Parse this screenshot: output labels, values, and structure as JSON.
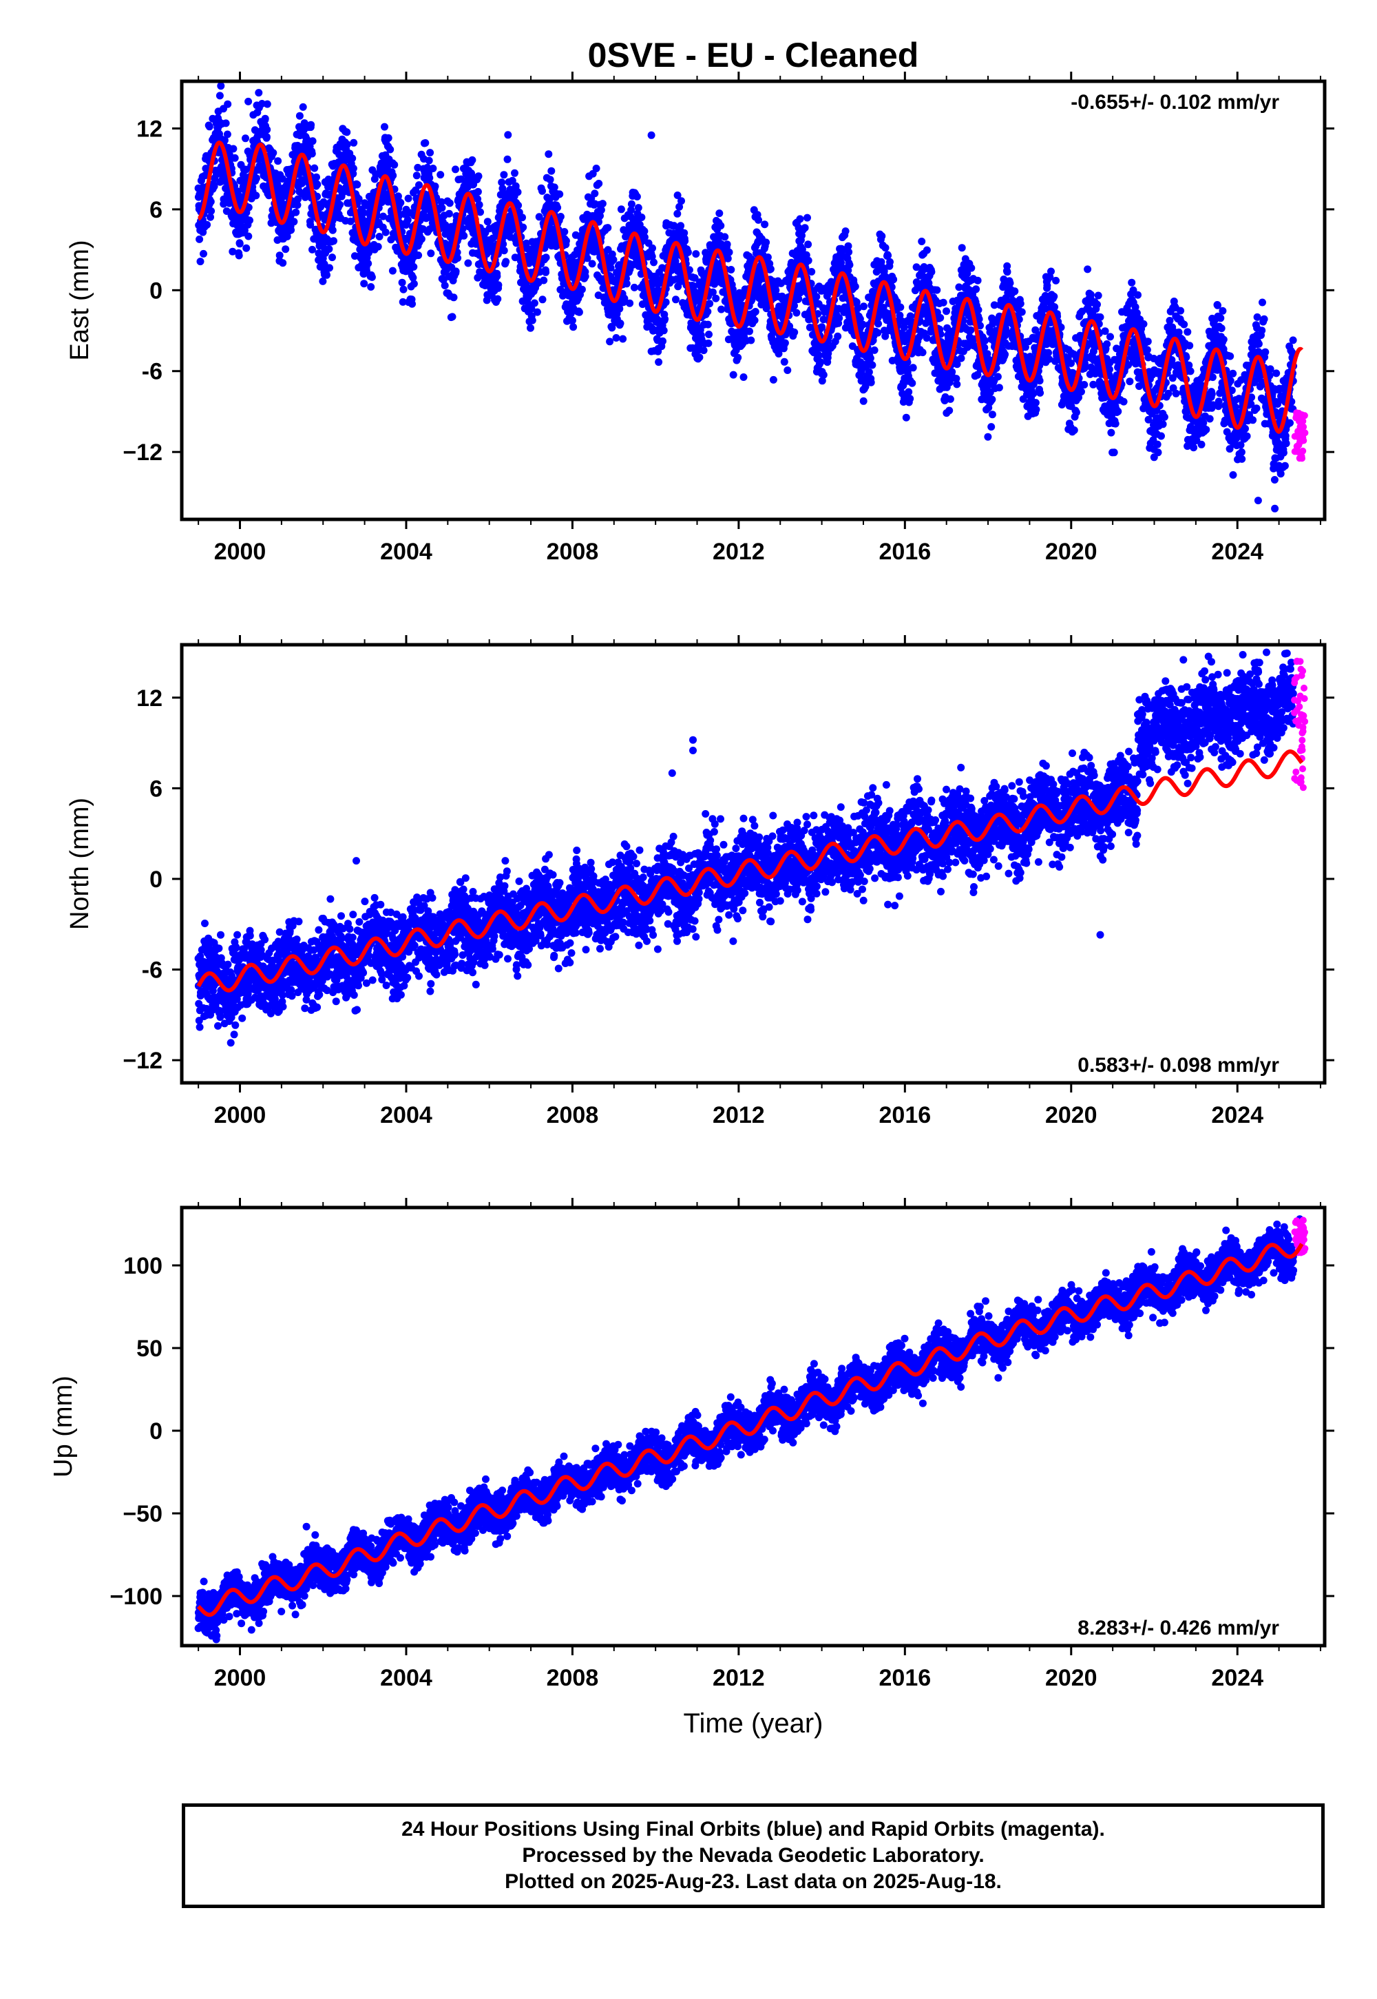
{
  "caption": {
    "line1": "24 Hour Positions Using Final Orbits (blue) and Rapid Orbits (magenta).",
    "line2": "Processed by the Nevada Geodetic Laboratory.",
    "line3": "Plotted on 2025-Aug-23. Last data on 2025-Aug-18."
  },
  "colors": {
    "final": "#0000ff",
    "rapid": "#ff00ff",
    "model": "#ff0000"
  },
  "chart_data": [
    {
      "type": "scatter",
      "title": "0SVE  - EU - Cleaned",
      "ylabel": "East (mm)",
      "xlabel": "",
      "xlim": [
        1998.6,
        2026.1
      ],
      "ylim": [
        -17,
        15.5
      ],
      "xticks": [
        2000,
        2004,
        2008,
        2012,
        2016,
        2020,
        2024
      ],
      "yticks": [
        12,
        6,
        0,
        -6,
        -12
      ],
      "ytick_labels": [
        "12",
        "6",
        "0",
        "-6",
        "−12"
      ],
      "rate": "-0.655+/- 0.102 mm/yr",
      "rate_position": "top-right",
      "model": {
        "knots": [
          [
            1999.0,
            8.0
          ],
          [
            2000.0,
            8.5
          ],
          [
            2001.0,
            7.7
          ],
          [
            2002.0,
            7.0
          ],
          [
            2003.0,
            6.1
          ],
          [
            2004.0,
            5.4
          ],
          [
            2005.0,
            4.8
          ],
          [
            2006.0,
            4.1
          ],
          [
            2007.0,
            3.4
          ],
          [
            2008.0,
            2.8
          ],
          [
            2009.0,
            1.9
          ],
          [
            2010.0,
            1.1
          ],
          [
            2011.0,
            0.5
          ],
          [
            2012.0,
            0.0
          ],
          [
            2013.0,
            -0.5
          ],
          [
            2014.0,
            -1.1
          ],
          [
            2015.0,
            -1.8
          ],
          [
            2016.0,
            -2.4
          ],
          [
            2017.0,
            -3.1
          ],
          [
            2018.0,
            -3.6
          ],
          [
            2019.0,
            -4.0
          ],
          [
            2020.0,
            -4.7
          ],
          [
            2021.0,
            -5.3
          ],
          [
            2022.0,
            -5.9
          ],
          [
            2023.0,
            -6.7
          ],
          [
            2024.0,
            -7.5
          ],
          [
            2025.0,
            -7.8
          ],
          [
            2025.55,
            -7.0
          ]
        ],
        "seasonal_amplitude": 2.7,
        "phase": 0.25
      },
      "scatter_sigma": 1.7,
      "final_end": 2025.35,
      "rapid": {
        "x_range": [
          2025.37,
          2025.63
        ],
        "y_range": [
          -12.5,
          -9.0
        ]
      },
      "outliers": [
        [
          2009.9,
          11.5
        ],
        [
          2000.2,
          14.0
        ],
        [
          2024.9,
          -16.2
        ],
        [
          2024.5,
          -15.6
        ]
      ]
    },
    {
      "type": "scatter",
      "title": "",
      "ylabel": "North (mm)",
      "xlabel": "",
      "xlim": [
        1998.6,
        2026.1
      ],
      "ylim": [
        -13.5,
        15.5
      ],
      "xticks": [
        2000,
        2004,
        2008,
        2012,
        2016,
        2020,
        2024
      ],
      "yticks": [
        12,
        6,
        0,
        -6,
        -12
      ],
      "ytick_labels": [
        "12",
        "6",
        "0",
        "-6",
        "−12"
      ],
      "rate": "0.583+/- 0.098 mm/yr",
      "rate_position": "bottom-right",
      "model": {
        "knots": [
          [
            1999.0,
            -7.1
          ],
          [
            2002.0,
            -5.4
          ],
          [
            2004.0,
            -4.2
          ],
          [
            2006.0,
            -3.0
          ],
          [
            2008.0,
            -1.9
          ],
          [
            2010.0,
            -0.8
          ],
          [
            2012.0,
            0.4
          ],
          [
            2014.0,
            1.5
          ],
          [
            2016.0,
            2.5
          ],
          [
            2018.0,
            3.4
          ],
          [
            2020.0,
            4.6
          ],
          [
            2021.8,
            5.7
          ],
          [
            2024.0,
            7.0
          ],
          [
            2025.55,
            7.9
          ]
        ],
        "seasonal_amplitude": 0.7,
        "phase": 0.0
      },
      "scatter_sigma": 1.3,
      "final_end": 2025.35,
      "offset": {
        "from": 2021.6,
        "value": 4.0
      },
      "rapid": {
        "x_range": [
          2025.37,
          2025.63
        ],
        "y_range": [
          6.0,
          14.5
        ]
      },
      "outliers": [
        [
          2010.9,
          9.2
        ],
        [
          2010.4,
          7.0
        ],
        [
          2010.9,
          8.5
        ],
        [
          2020.7,
          -3.7
        ],
        [
          2002.8,
          1.2
        ],
        [
          2022.7,
          14.5
        ],
        [
          2024.7,
          15.0
        ]
      ]
    },
    {
      "type": "scatter",
      "title": "",
      "ylabel": "Up (mm)",
      "xlabel": "Time (year)",
      "xlim": [
        1998.6,
        2026.1
      ],
      "ylim": [
        -130,
        135
      ],
      "xticks": [
        2000,
        2004,
        2008,
        2012,
        2016,
        2020,
        2024
      ],
      "yticks": [
        100,
        50,
        0,
        -50,
        -100
      ],
      "ytick_labels": [
        "100",
        "50",
        "0",
        "−50",
        "−100"
      ],
      "rate": "8.283+/- 0.426 mm/yr",
      "rate_position": "bottom-right",
      "model": {
        "knots": [
          [
            1999.0,
            -108.0
          ],
          [
            2002.0,
            -85.0
          ],
          [
            2004.0,
            -66.0
          ],
          [
            2006.0,
            -49.0
          ],
          [
            2008.0,
            -32.0
          ],
          [
            2010.0,
            -16.0
          ],
          [
            2012.0,
            1.0
          ],
          [
            2014.0,
            19.0
          ],
          [
            2016.0,
            37.0
          ],
          [
            2018.0,
            55.0
          ],
          [
            2020.0,
            70.0
          ],
          [
            2022.0,
            84.0
          ],
          [
            2024.0,
            100.0
          ],
          [
            2025.55,
            113.0
          ]
        ],
        "seasonal_amplitude": 5.5,
        "phase": 0.55
      },
      "scatter_sigma": 6.5,
      "final_end": 2025.35,
      "rapid": {
        "x_range": [
          2025.37,
          2025.63
        ],
        "y_range": [
          107.0,
          128.0
        ]
      },
      "outliers": [
        [
          2001.6,
          -58.0
        ],
        [
          2025.5,
          128.0
        ]
      ]
    }
  ]
}
